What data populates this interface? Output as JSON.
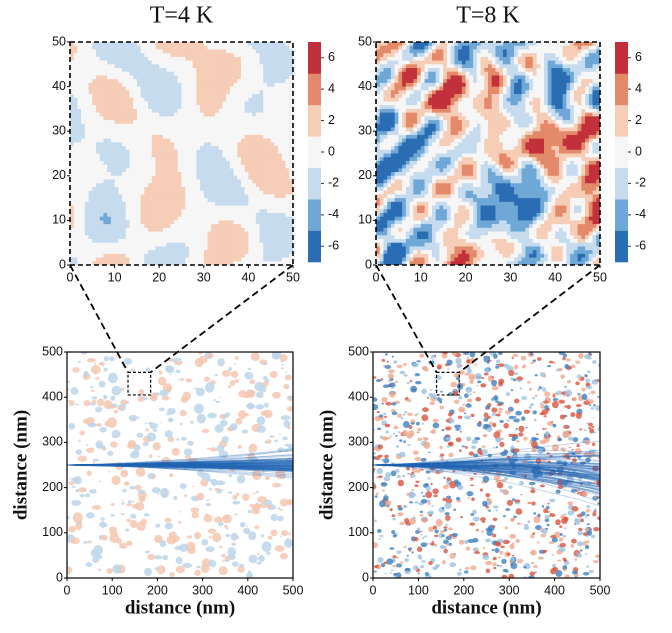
{
  "chart_data": [
    {
      "type": "contour",
      "title": "T=4 K",
      "xlim": [
        0,
        50
      ],
      "ylim": [
        0,
        50
      ],
      "xticks": [
        0,
        10,
        20,
        30,
        40,
        50
      ],
      "yticks": [
        0,
        10,
        20,
        30,
        40,
        50
      ],
      "colorbar": {
        "clim": [
          -7,
          7
        ],
        "ticks": [
          6,
          4,
          2,
          0,
          -2,
          -4,
          -6
        ],
        "colors": [
          "#2a6db3",
          "#6fa8d6",
          "#c6dcee",
          "#f6f6f6",
          "#f6cdb6",
          "#e48a6a",
          "#c2313b"
        ]
      }
    },
    {
      "type": "contour",
      "title": "T=8 K",
      "xlim": [
        0,
        50
      ],
      "ylim": [
        0,
        50
      ],
      "xticks": [
        0,
        10,
        20,
        30,
        40,
        50
      ],
      "yticks": [
        0,
        10,
        20,
        30,
        40,
        50
      ],
      "colorbar": {
        "clim": [
          -7,
          7
        ],
        "ticks": [
          6,
          4,
          2,
          0,
          -2,
          -4,
          -6
        ],
        "colors": [
          "#2a6db3",
          "#6fa8d6",
          "#c6dcee",
          "#f6f6f6",
          "#f6cdb6",
          "#e48a6a",
          "#c2313b"
        ]
      }
    },
    {
      "type": "flow",
      "xlabel": "distance (nm)",
      "ylabel": "distance (nm)",
      "xlim": [
        0,
        500
      ],
      "ylim": [
        0,
        500
      ],
      "xticks": [
        0,
        100,
        200,
        300,
        400,
        500
      ],
      "yticks": [
        0,
        100,
        200,
        300,
        400,
        500
      ],
      "zoom_box": {
        "x": [
          135,
          185
        ],
        "y": [
          405,
          455
        ]
      }
    },
    {
      "type": "flow",
      "xlabel": "distance (nm)",
      "ylabel": "distance (nm)",
      "xlim": [
        0,
        500
      ],
      "ylim": [
        0,
        500
      ],
      "xticks": [
        0,
        100,
        200,
        300,
        400,
        500
      ],
      "yticks": [
        0,
        100,
        200,
        300,
        400,
        500
      ],
      "zoom_box": {
        "x": [
          140,
          190
        ],
        "y": [
          405,
          455
        ]
      }
    }
  ]
}
